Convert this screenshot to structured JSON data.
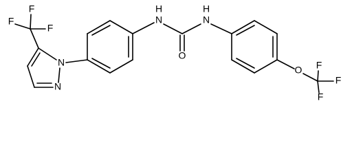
{
  "atoms": [
    "F",
    "F",
    "F",
    "N",
    "N",
    "H",
    "N",
    "O",
    "H",
    "N",
    "O",
    "F",
    "F",
    "F"
  ]
}
